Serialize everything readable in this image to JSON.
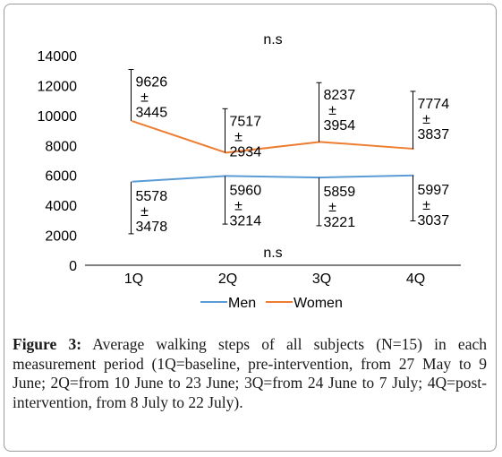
{
  "chart_data": {
    "type": "line",
    "categories": [
      "1Q",
      "2Q",
      "3Q",
      "4Q"
    ],
    "series": [
      {
        "name": "Men",
        "color": "#5b9bd5",
        "values": [
          5578,
          5960,
          5859,
          5997
        ],
        "sd": [
          3478,
          3214,
          3221,
          3037
        ],
        "mean_labels": [
          "5578",
          "5960",
          "5859",
          "5997"
        ],
        "sd_labels": [
          "3478",
          "3214",
          "3221",
          "3037"
        ]
      },
      {
        "name": "Women",
        "color": "#ed7d31",
        "values": [
          9626,
          7517,
          8237,
          7774
        ],
        "sd": [
          3445,
          2934,
          3954,
          3837
        ],
        "mean_labels": [
          "9626",
          "7517",
          "8237",
          "7774"
        ],
        "sd_labels": [
          "3445",
          "2934",
          "3954",
          "3837"
        ]
      }
    ],
    "pm_symbol": "±",
    "ylim": [
      0,
      14000
    ],
    "yticks": [
      "0",
      "2000",
      "4000",
      "6000",
      "8000",
      "10000",
      "12000",
      "14000"
    ],
    "annotations": {
      "top": "n.s",
      "bottom": "n.s"
    },
    "legend_position": "bottom"
  },
  "caption": {
    "label": "Figure 3:",
    "text": "Average walking steps of all subjects (N=15) in each measurement period (1Q=baseline, pre-intervention, from 27 May to 9 June; 2Q=from 10 June to 23 June; 3Q=from 24 June to 7 July; 4Q=post-intervention, from 8 July to 22 July)."
  }
}
